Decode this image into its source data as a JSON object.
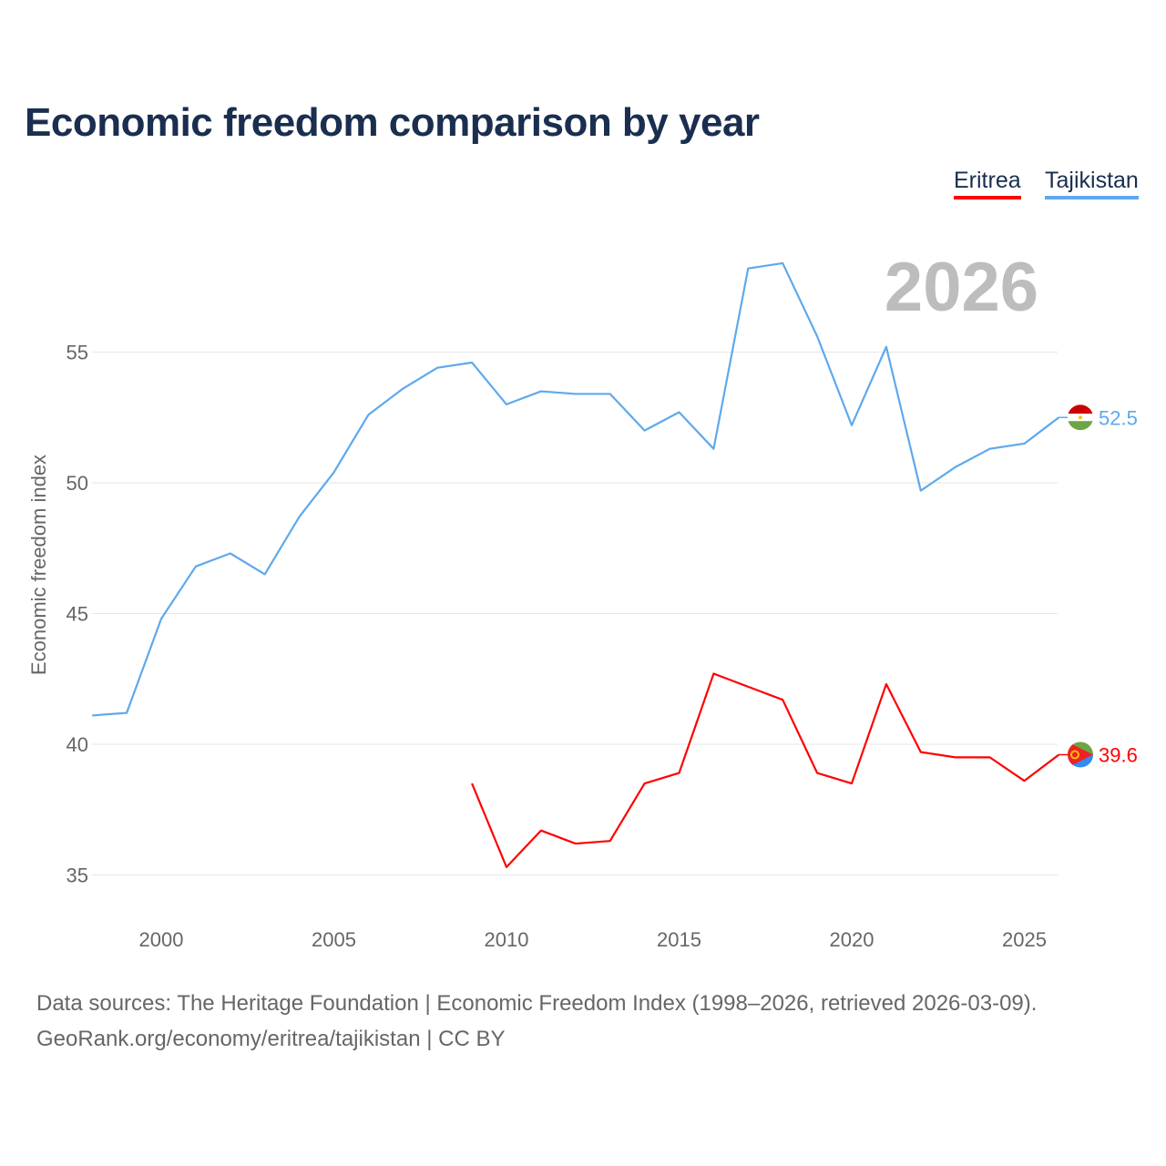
{
  "chart_data": {
    "type": "line",
    "title": "Economic freedom comparison by year",
    "xlabel": "",
    "ylabel": "Economic freedom index",
    "xlim": [
      1998,
      2026
    ],
    "ylim": [
      33.5,
      59
    ],
    "x_ticks": [
      2000,
      2005,
      2010,
      2015,
      2020,
      2025
    ],
    "y_ticks": [
      35,
      40,
      45,
      50,
      55
    ],
    "grid": true,
    "legend_position": "top-right",
    "year_label": "2026",
    "series": [
      {
        "name": "Eritrea",
        "color": "#ff0000",
        "end_label": "39.6",
        "x": [
          2009,
          2010,
          2011,
          2012,
          2013,
          2014,
          2015,
          2016,
          2017,
          2018,
          2019,
          2020,
          2021,
          2022,
          2023,
          2024,
          2025,
          2026
        ],
        "values": [
          38.5,
          35.3,
          36.7,
          36.2,
          36.3,
          38.5,
          38.9,
          42.7,
          42.2,
          41.7,
          38.9,
          38.5,
          42.3,
          39.7,
          39.5,
          39.5,
          38.6,
          39.6
        ]
      },
      {
        "name": "Tajikistan",
        "color": "#5fa8ec",
        "end_label": "52.5",
        "x": [
          1998,
          1999,
          2000,
          2001,
          2002,
          2003,
          2004,
          2005,
          2006,
          2007,
          2008,
          2009,
          2010,
          2011,
          2012,
          2013,
          2014,
          2015,
          2016,
          2017,
          2018,
          2019,
          2020,
          2021,
          2022,
          2023,
          2024,
          2025,
          2026
        ],
        "values": [
          41.1,
          41.2,
          44.8,
          46.8,
          47.3,
          46.5,
          48.7,
          50.4,
          52.6,
          53.6,
          54.4,
          54.6,
          53.0,
          53.5,
          53.4,
          53.4,
          52.0,
          52.7,
          51.3,
          58.2,
          58.4,
          55.6,
          52.2,
          55.2,
          49.7,
          50.6,
          51.3,
          51.5,
          52.5
        ]
      }
    ]
  },
  "footer": {
    "sources": "Data sources: The Heritage Foundation | Economic Freedom Index (1998–2026, retrieved 2026-03-09).",
    "credit": "GeoRank.org/economy/eritrea/tajikistan | CC BY"
  }
}
